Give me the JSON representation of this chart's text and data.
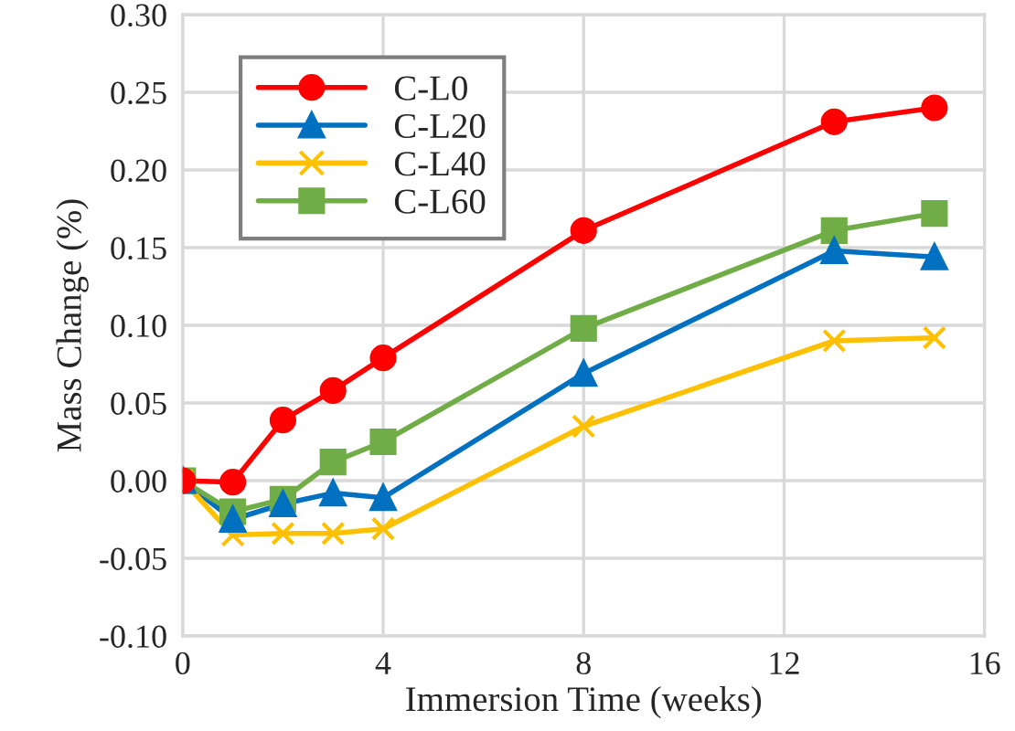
{
  "chart_data": {
    "type": "line",
    "xlabel": "Immersion Time (weeks)",
    "ylabel": "Mass Change (%)",
    "x": [
      0,
      1,
      2,
      3,
      4,
      8,
      13,
      15
    ],
    "series": [
      {
        "name": "C-L0",
        "color": "#ff0000",
        "marker": "circle",
        "values": [
          0,
          -0.001,
          0.039,
          0.058,
          0.079,
          0.161,
          0.231,
          0.24
        ]
      },
      {
        "name": "C-L20",
        "color": "#0070c0",
        "marker": "triangle",
        "values": [
          0,
          -0.025,
          -0.015,
          -0.008,
          -0.011,
          0.069,
          0.148,
          0.144
        ]
      },
      {
        "name": "C-L40",
        "color": "#ffc000",
        "marker": "cross",
        "values": [
          0,
          -0.035,
          -0.034,
          -0.034,
          -0.031,
          0.035,
          0.09,
          0.092
        ]
      },
      {
        "name": "C-L60",
        "color": "#70ad47",
        "marker": "square",
        "values": [
          0,
          -0.02,
          -0.012,
          0.012,
          0.025,
          0.098,
          0.161,
          0.172
        ]
      }
    ],
    "xlim": [
      0,
      16
    ],
    "xticks": [
      0,
      4,
      8,
      12,
      16
    ],
    "ylim": [
      -0.1,
      0.3
    ],
    "yticks": [
      {
        "value": -0.1,
        "label": "-0.10"
      },
      {
        "value": -0.05,
        "label": "-0.05"
      },
      {
        "value": 0,
        "label": "0.00"
      },
      {
        "value": 0.05,
        "label": "0.05"
      },
      {
        "value": 0.1,
        "label": "0.10"
      },
      {
        "value": 0.15,
        "label": "0.15"
      },
      {
        "value": 0.2,
        "label": "0.20"
      },
      {
        "value": 0.25,
        "label": "0.25"
      },
      {
        "value": 0.3,
        "label": "0.30"
      }
    ],
    "grid": true,
    "legend": "top left",
    "line_style": "solid"
  }
}
